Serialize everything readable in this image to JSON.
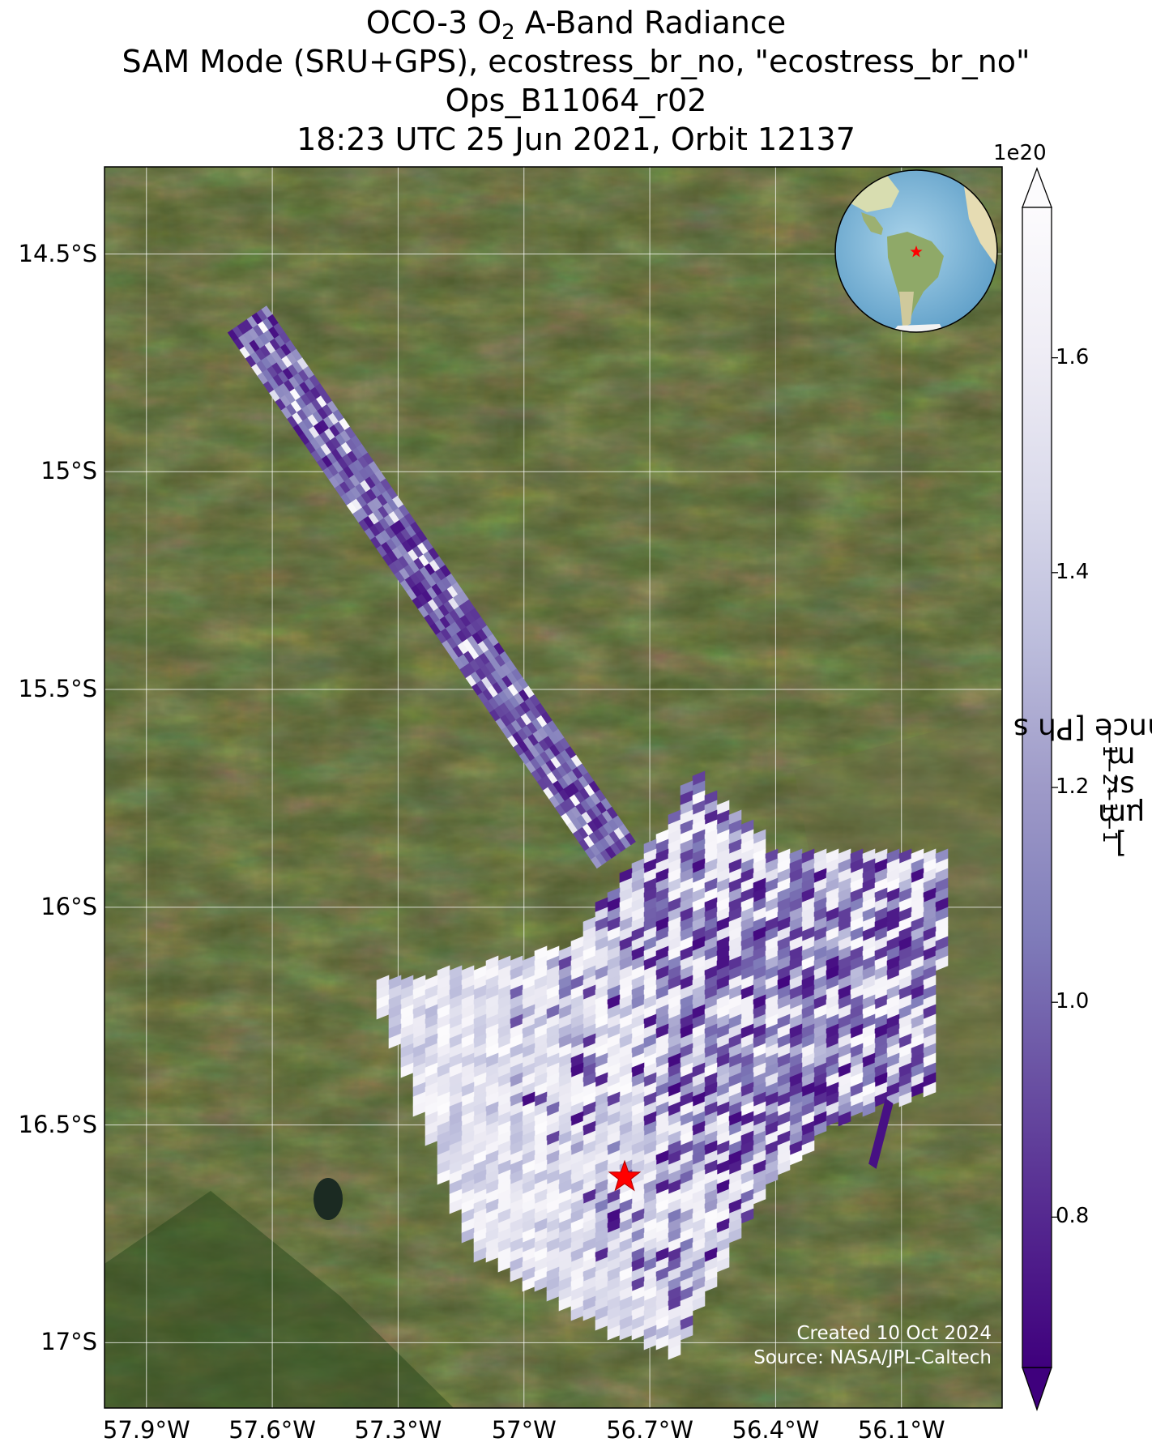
{
  "title": {
    "line1_pre": "OCO-3 O",
    "line1_sub": "2",
    "line1_post": " A-Band Radiance",
    "line2": "SAM Mode (SRU+GPS), ecostress_br_no, \"ecostress_br_no\"",
    "line3": "Ops_B11064_r02",
    "line4": "18:23 UTC 25 Jun 2021, Orbit 12137"
  },
  "lat_labels": [
    "14.5°S",
    "15°S",
    "15.5°S",
    "16°S",
    "16.5°S",
    "17°S"
  ],
  "lat_values": [
    -14.5,
    -15.0,
    -15.5,
    -16.0,
    -16.5,
    -17.0
  ],
  "lon_labels": [
    "57.9°W",
    "57.6°W",
    "57.3°W",
    "57°W",
    "56.7°W",
    "56.4°W",
    "56.1°W"
  ],
  "lon_values": [
    -57.9,
    -57.6,
    -57.3,
    -57.0,
    -56.7,
    -56.4,
    -56.1
  ],
  "map": {
    "lon_range": [
      -58.0,
      -55.86
    ],
    "lat_range": [
      -17.15,
      -14.3
    ],
    "grid": true,
    "target_lon": -56.76,
    "target_lat": -16.62,
    "target_color": "#ff0000",
    "basemap_color": "#4d5a2c"
  },
  "colorbar": {
    "exponent": "1e20",
    "ticks": [
      "0.8",
      "1.0",
      "1.2",
      "1.4",
      "1.6"
    ],
    "tick_values": [
      0.8,
      1.0,
      1.2,
      1.4,
      1.6
    ],
    "range": [
      0.66,
      1.74
    ],
    "colormap": "Purples",
    "colors": [
      "#3f007d",
      "#54278f",
      "#6a51a3",
      "#807dba",
      "#9e9ac8",
      "#bcbddc",
      "#dadaeb",
      "#efedf5",
      "#fcfbfd"
    ],
    "label": {
      "main": "Radiance [Ph s",
      "e1": "−1",
      "m": " m",
      "e2": "−2",
      "sr": " sr",
      "e3": "−1",
      "um": "μm",
      "e4": "−1",
      "end": "]"
    }
  },
  "swath": {
    "strip": {
      "start_lon": -57.66,
      "start_lat": -14.65,
      "end_lon": -56.78,
      "end_lat": -15.88
    },
    "fan": {
      "apex_lon": -56.7,
      "apex_lat": -15.68
    },
    "sliver": {
      "top_lon": -56.13,
      "top_lat": -16.44,
      "bottom_lon": -56.17,
      "bottom_lat": -16.6
    }
  },
  "inset": {
    "marker_color": "#ff0000"
  },
  "credit": {
    "line1": "Created 10 Oct 2024",
    "line2": "Source: NASA/JPL-Caltech"
  }
}
